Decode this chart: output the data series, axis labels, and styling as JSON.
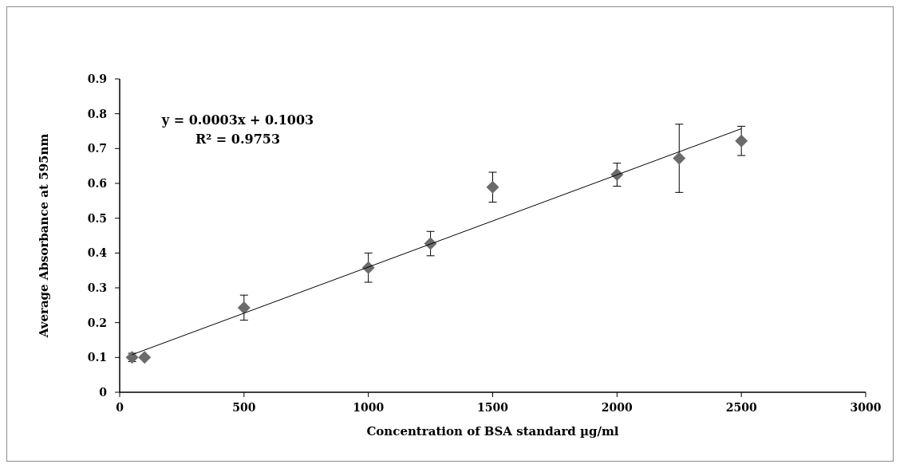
{
  "chart_data": {
    "type": "scatter",
    "xlabel": "Concentration of BSA standard µg/ml",
    "ylabel": "Average Absorbance at 595nm",
    "x": [
      50,
      100,
      500,
      1000,
      1250,
      1500,
      2000,
      2250,
      2500
    ],
    "series": [
      {
        "color": "#6b6b6b",
        "marker": "diamond",
        "values": [
          0.1,
          0.1,
          0.243,
          0.358,
          0.427,
          0.589,
          0.625,
          0.672,
          0.722
        ],
        "errors": [
          0.012,
          0.005,
          0.036,
          0.042,
          0.035,
          0.043,
          0.033,
          0.098,
          0.042
        ]
      },
      {
        "type": "line",
        "color": "#000000",
        "x": [
          50,
          2500
        ],
        "values": [
          0.108,
          0.757
        ],
        "line_style": "solid"
      }
    ],
    "annotations": [
      "y = 0.0003x + 0.1003",
      "R² = 0.9753"
    ],
    "xlim": [
      0,
      3000
    ],
    "xticks": [
      0,
      500,
      1000,
      1500,
      2000,
      2500,
      3000
    ],
    "ylim": [
      0,
      0.9
    ],
    "yticks": [
      0,
      0.1,
      0.2,
      0.3,
      0.4,
      0.5,
      0.6,
      0.7,
      0.8,
      0.9
    ],
    "grid": false
  }
}
